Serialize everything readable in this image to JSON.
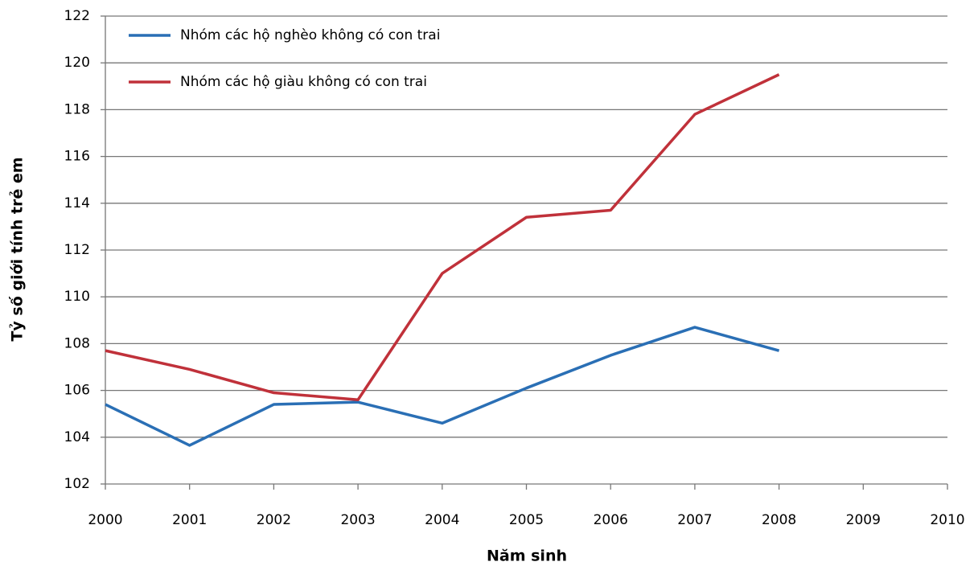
{
  "chart_data": {
    "type": "line",
    "x_label": "Năm sinh",
    "y_label": "Tỷ số giới tính trẻ em",
    "x": [
      2000,
      2001,
      2002,
      2003,
      2004,
      2005,
      2006,
      2007,
      2008
    ],
    "series": [
      {
        "name": "Nhóm các hộ nghèo không có con trai",
        "color": "#2a6fb5",
        "values": [
          105.4,
          103.65,
          105.4,
          105.5,
          104.6,
          106.1,
          107.5,
          108.7,
          107.7
        ]
      },
      {
        "name": "Nhóm các hộ giàu không có con trai",
        "color": "#c0313a",
        "values": [
          107.7,
          106.9,
          105.9,
          105.6,
          111.0,
          113.4,
          113.7,
          117.8,
          119.5
        ]
      }
    ],
    "xlim": [
      2000,
      2010
    ],
    "xticks": [
      2000,
      2001,
      2002,
      2003,
      2004,
      2005,
      2006,
      2007,
      2008,
      2009,
      2010
    ],
    "ylim": [
      102,
      122
    ],
    "yticks": [
      102,
      104,
      106,
      108,
      110,
      112,
      114,
      116,
      118,
      120,
      122
    ],
    "grid": true,
    "legend": "upper-left"
  }
}
